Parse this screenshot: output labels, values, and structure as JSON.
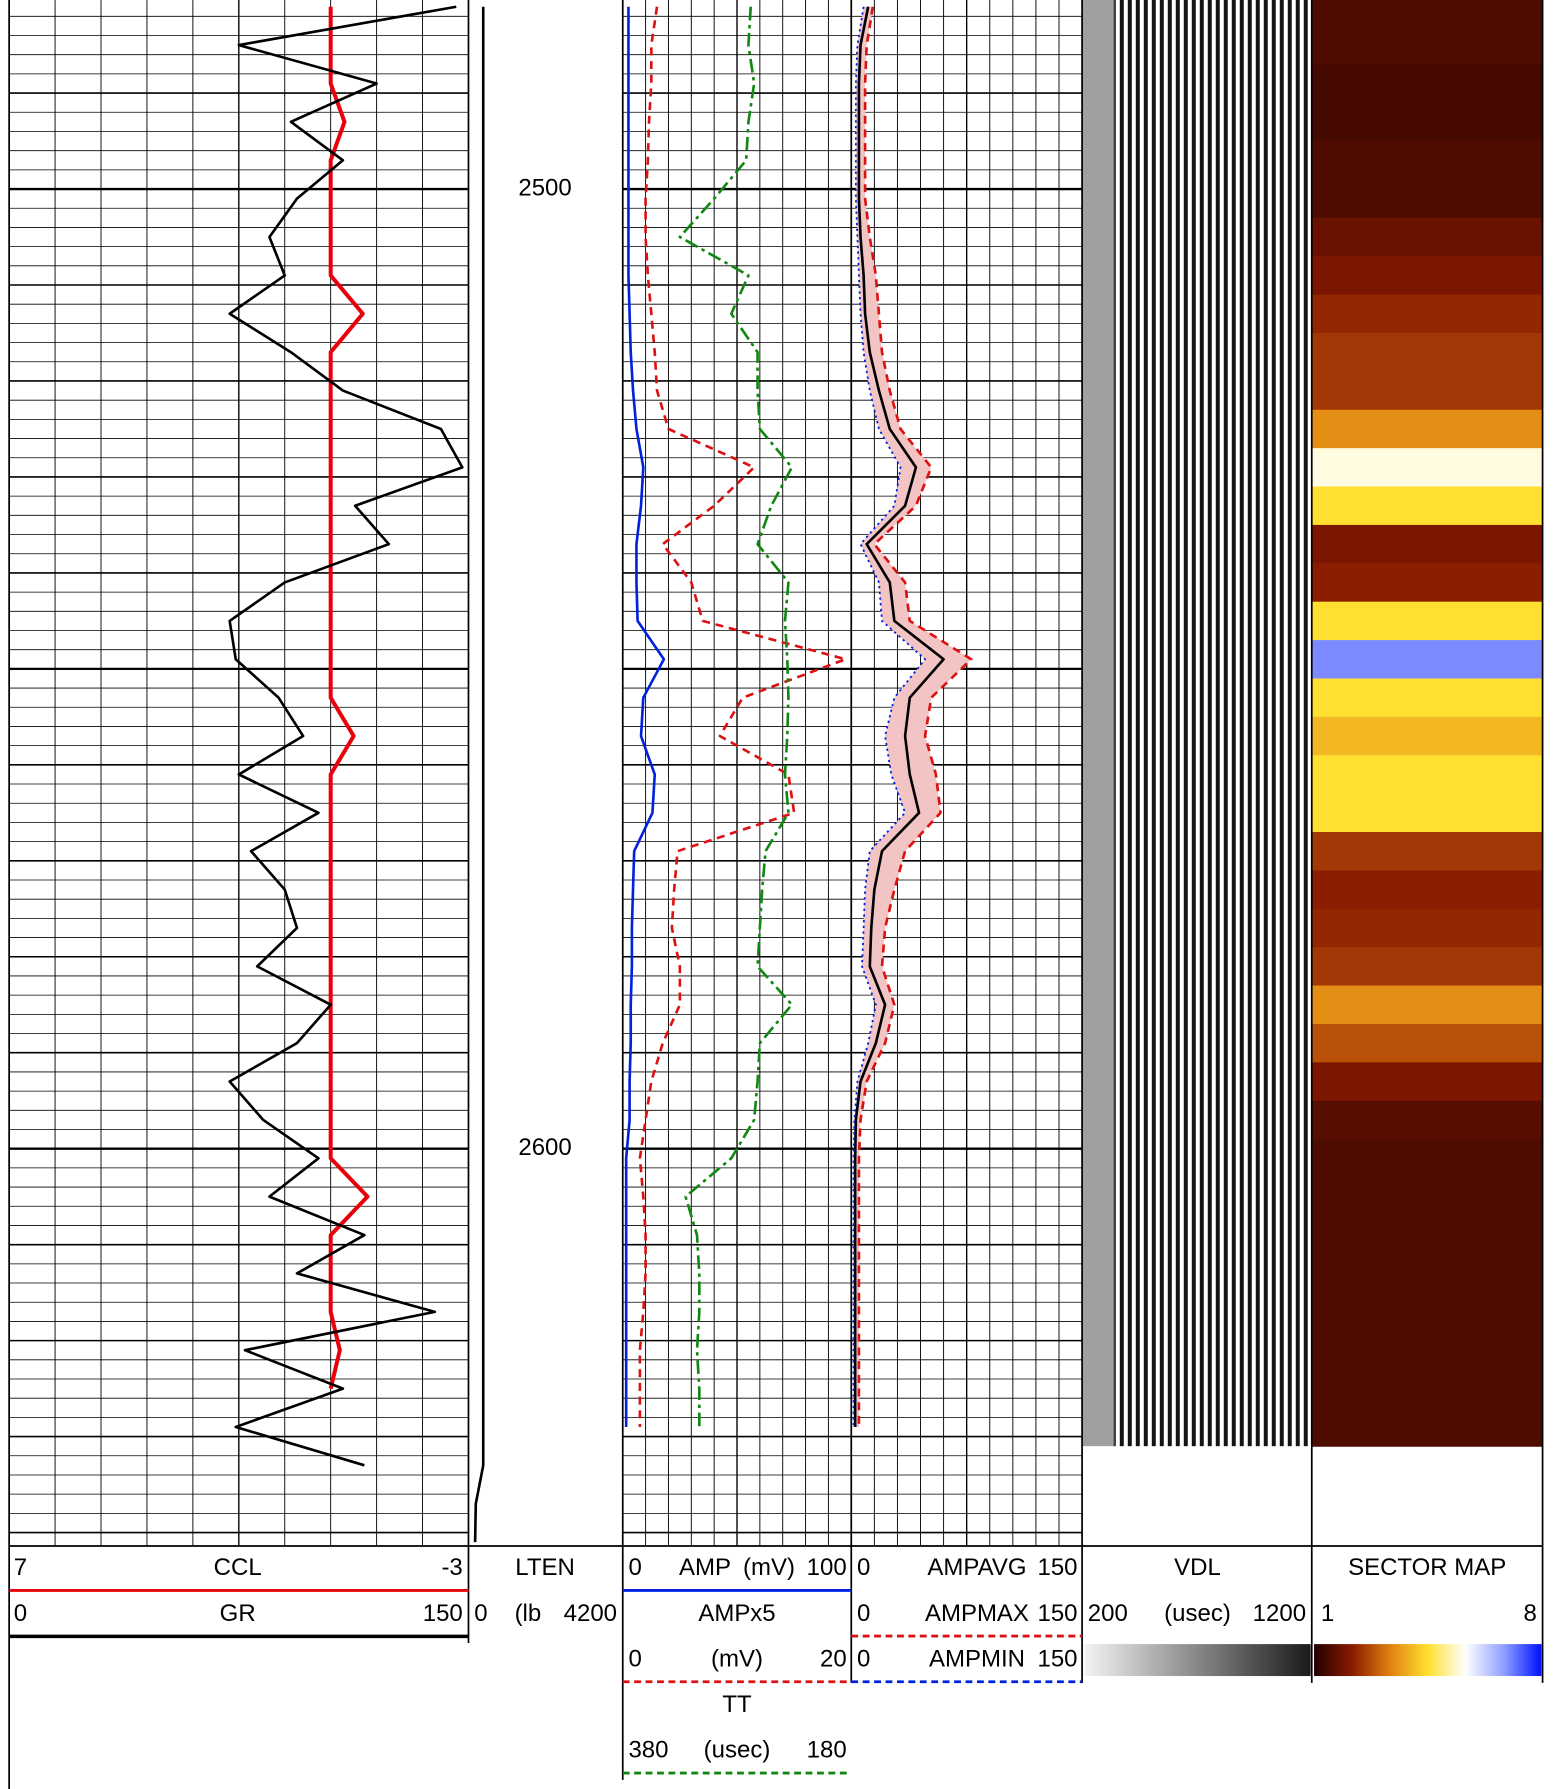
{
  "chart_data": {
    "type": "well-log",
    "depth": [
      2481,
      2485,
      2489,
      2493,
      2497,
      2501,
      2505,
      2509,
      2513,
      2517,
      2521,
      2525,
      2529,
      2533,
      2537,
      2541,
      2545,
      2549,
      2553,
      2557,
      2561,
      2565,
      2569,
      2573,
      2577,
      2581,
      2585,
      2589,
      2593,
      2597,
      2601,
      2605,
      2609,
      2613,
      2617,
      2621,
      2625,
      2629,
      2633,
      2637,
      2641
    ],
    "ylim": [
      2480.3,
      2641.4
    ],
    "yticks": [
      2500,
      2600
    ],
    "tracks": [
      {
        "type": "line",
        "grid": true,
        "series": [
          {
            "name": "CCL",
            "color": "#e8000b",
            "style": "solid",
            "xlim": [
              7,
              -3
            ],
            "values": [
              0,
              0,
              0,
              -0.3,
              0,
              0,
              0,
              0,
              -0.7,
              0,
              0,
              0,
              0,
              0,
              0,
              0,
              0,
              0,
              0,
              -0.5,
              0,
              0,
              0,
              0,
              0,
              0,
              0,
              0,
              0,
              0,
              0,
              -0.8,
              0,
              0,
              0,
              -0.2,
              0,
              null,
              null,
              null,
              null
            ]
          },
          {
            "name": "GR",
            "color": "#000000",
            "style": "solid",
            "xlim": [
              0,
              150
            ],
            "values": [
              146,
              75,
              120,
              92,
              109,
              94,
              85,
              90,
              72,
              92,
              109,
              141,
              148,
              113,
              124,
              90,
              72,
              74,
              88,
              96,
              75,
              101,
              79,
              90,
              94,
              81,
              105,
              94,
              72,
              83,
              101,
              85,
              116,
              94,
              139,
              77,
              109,
              74,
              116,
              null,
              null
            ]
          }
        ]
      },
      {
        "type": "line",
        "grid": false,
        "series": [
          {
            "name": "LTEN",
            "unit": "(lb",
            "color": "#000000",
            "style": "solid",
            "xlim": [
              0,
              4200
            ],
            "values": [
              400,
              400,
              400,
              400,
              400,
              400,
              400,
              400,
              400,
              400,
              400,
              400,
              400,
              400,
              400,
              400,
              400,
              400,
              400,
              400,
              400,
              400,
              400,
              400,
              400,
              400,
              400,
              400,
              400,
              400,
              400,
              400,
              400,
              400,
              400,
              400,
              400,
              400,
              400,
              200,
              180
            ]
          }
        ]
      },
      {
        "type": "line",
        "grid": true,
        "series": [
          {
            "name": "AMP",
            "unit": "(mV)",
            "color": "#0022dd",
            "style": "solid",
            "xlim": [
              0,
              100
            ],
            "values": [
              2.5,
              2.5,
              2.5,
              2.5,
              2.5,
              2.5,
              2.5,
              2.5,
              3,
              3.5,
              4.5,
              6,
              9,
              8,
              6,
              6,
              6.5,
              18,
              9,
              8,
              14,
              13,
              5,
              4.5,
              4,
              4,
              3.5,
              3.5,
              3,
              3,
              1.5,
              1.5,
              1.5,
              1.5,
              1.5,
              1.5,
              1.5,
              1.5,
              null,
              null,
              null
            ]
          },
          {
            "name": "AMPx5",
            "unit": "(mV)",
            "color": "#dd1111",
            "style": "dashed",
            "xlim": [
              0,
              20
            ],
            "values": [
              3.0,
              2.5,
              2.5,
              2.3,
              2.2,
              2.0,
              2.0,
              2.2,
              2.5,
              2.8,
              3.0,
              4.0,
              11.5,
              8.0,
              3.5,
              6.0,
              7.0,
              19.5,
              10.5,
              8.5,
              14.5,
              15.0,
              4.8,
              4.5,
              4.3,
              5.0,
              5.0,
              3.5,
              2.5,
              2.0,
              1.5,
              1.8,
              2.0,
              2.0,
              1.8,
              1.5,
              1.5,
              1.5,
              null,
              null,
              null
            ]
          },
          {
            "name": "TT",
            "unit": "(usec)",
            "color": "#118811",
            "style": "dashdot",
            "xlim": [
              380,
              180
            ],
            "values": [
              268,
              270,
              265,
              270,
              272,
              300,
              330,
              270,
              285,
              262,
              262,
              260,
              232,
              250,
              262,
              235,
              238,
              236,
              235,
              236,
              238,
              235,
              255,
              258,
              260,
              262,
              232,
              260,
              262,
              265,
              285,
              325,
              315,
              313,
              313,
              315,
              313,
              313,
              null,
              null,
              null
            ]
          }
        ]
      },
      {
        "type": "line",
        "grid": true,
        "shade_color": "#f2c4c4",
        "series": [
          {
            "name": "AMPAVG",
            "color": "#000000",
            "style": "solid",
            "xlim": [
              0,
              150
            ],
            "values": [
              11,
              6,
              5,
              5,
              5,
              5,
              6,
              8,
              9,
              12,
              18,
              25,
              42,
              35,
              10,
              25,
              28,
              60,
              38,
              35,
              38,
              44,
              20,
              15,
              13,
              12,
              22,
              16,
              6,
              3,
              2.5,
              2.5,
              2.5,
              2.5,
              2.5,
              2.5,
              2.5,
              2.5,
              null,
              null,
              null
            ]
          },
          {
            "name": "AMPMAX",
            "color": "#dd1111",
            "style": "dashed",
            "xlim": [
              0,
              150
            ],
            "values": [
              14,
              10,
              9,
              9,
              9,
              9,
              12,
              16,
              18,
              20,
              25,
              32,
              52,
              42,
              15,
              35,
              38,
              78,
              52,
              48,
              55,
              58,
              35,
              28,
              22,
              20,
              28,
              22,
              10,
              6,
              5,
              5,
              5,
              5,
              5,
              5,
              5,
              5,
              null,
              null,
              null
            ]
          },
          {
            "name": "AMPMIN",
            "color": "#0022dd",
            "style": "dotted",
            "xlim": [
              0,
              150
            ],
            "values": [
              8,
              4,
              3,
              3,
              3,
              3,
              4,
              5,
              6,
              8,
              12,
              18,
              32,
              28,
              6,
              18,
              20,
              48,
              28,
              22,
              26,
              35,
              12,
              9,
              8,
              7,
              16,
              11,
              4,
              2,
              1.5,
              1.5,
              1.5,
              1.5,
              1.5,
              1.5,
              1.5,
              1.5,
              null,
              null,
              null
            ]
          }
        ]
      },
      {
        "type": "image",
        "name": "VDL",
        "unit": "(usec)",
        "xlim": [
          200,
          1200
        ],
        "colorscale": [
          "#f4f4f4",
          "#1a1a1a"
        ]
      },
      {
        "type": "heatmap",
        "name": "SECTOR MAP",
        "clim": [
          1,
          8
        ],
        "colorscale": [
          "#200000",
          "#8b1a00",
          "#e08010",
          "#ffe030",
          "#ffffff",
          "#90a0ff",
          "#0010ff"
        ],
        "values": [
          1.5,
          1.5,
          1.4,
          1.4,
          1.5,
          1.5,
          1.8,
          2,
          2.3,
          2.5,
          2.5,
          3.5,
          5.5,
          4.5,
          2,
          2.2,
          4.5,
          7,
          4.5,
          4,
          4.5,
          4.5,
          2.5,
          2.2,
          2.3,
          2.5,
          3.5,
          2.8,
          2,
          1.6,
          1.5,
          1.5,
          1.5,
          1.5,
          1.5,
          1.5,
          1.5,
          1.5,
          null,
          null,
          null
        ]
      }
    ]
  }
}
